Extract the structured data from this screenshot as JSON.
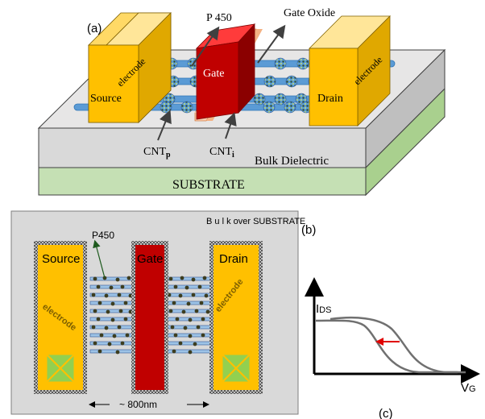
{
  "panel_a": {
    "label": "(a)",
    "p450_label": "P 450",
    "gate_oxide_label": "Gate Oxide",
    "gate_label": "Gate",
    "source_label": "Source",
    "drain_label": "Drain",
    "electrode_label": "electrode",
    "cnt_p_base": "CNT",
    "cnt_p_sub": "p",
    "cnt_i_base": "CNT",
    "cnt_i_sub": "i",
    "bulk_label": "Bulk Dielectric",
    "substrate_label": "SUBSTRATE"
  },
  "panel_b": {
    "label": "(b)",
    "bulk_label": "B u l k over SUBSTRATE",
    "p450_label": "P450",
    "source_label": "Source",
    "gate_label": "Gate",
    "drain_label": "Drain",
    "electrode_label": "electrode",
    "dimension_label": "~ 800nm"
  },
  "panel_c": {
    "label": "(c)",
    "y_axis_main": "I",
    "y_axis_sub": "DS",
    "x_axis_main": "V",
    "x_axis_sub": "G"
  },
  "colors": {
    "electrode": "#ffc000",
    "gate": "#c00000",
    "gate_oxide": "#f8cbad",
    "cnt": "#5b9bd5",
    "substrate": "#c5e0b4",
    "bulk": "#d9d9d9",
    "nanoparticle": "#3d5c2e",
    "curve": "#707070",
    "shift_arrow": "#e00000"
  }
}
